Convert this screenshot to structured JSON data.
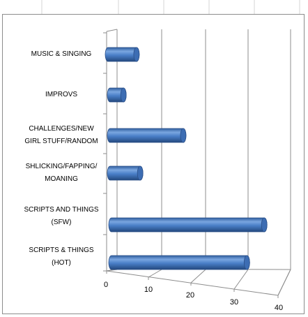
{
  "spreadsheet": {
    "grid_color": "#d4d4d4"
  },
  "chart_data": {
    "type": "bar",
    "orientation": "horizontal",
    "style": "3d-cylinder",
    "categories": [
      [
        "MUSIC & SINGING"
      ],
      [
        "IMPROVS"
      ],
      [
        "CHALLENGES/NEW",
        "GIRL STUFF/RANDOM"
      ],
      [
        "SHLICKING/FAPPING/",
        "MOANING"
      ],
      [
        "SCRIPTS AND THINGS",
        "(SFW)"
      ],
      [
        "SCRIPTS & THINGS",
        "(HOT)"
      ]
    ],
    "values": [
      6,
      3,
      17,
      7,
      36,
      32
    ],
    "xticks": [
      "0",
      "10",
      "20",
      "30",
      "40"
    ],
    "xlim": [
      0,
      40
    ],
    "grid": true,
    "legend": "none",
    "bar_color": "#4a7fc8"
  }
}
